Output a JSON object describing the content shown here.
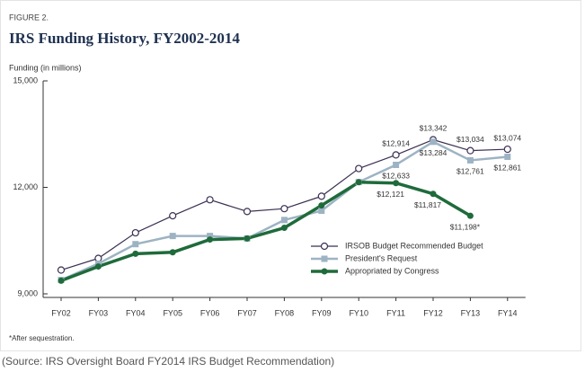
{
  "chart_data": {
    "type": "line",
    "supertitle": "FIGURE 2.",
    "title": "IRS Funding History, FY2002-2014",
    "y_label": "Funding (in millions)",
    "categories": [
      "FY02",
      "FY03",
      "FY04",
      "FY05",
      "FY06",
      "FY07",
      "FY08",
      "FY09",
      "FY10",
      "FY11",
      "FY12",
      "FY13",
      "FY14"
    ],
    "series": [
      {
        "name": "IRSOB Budget Recommended Budget",
        "color": "#3b3052",
        "marker": "circle",
        "values": [
          9670,
          10000,
          10720,
          11200,
          11650,
          11320,
          11400,
          11750,
          12530,
          12914,
          13342,
          13034,
          13074
        ],
        "value_labels": [
          null,
          null,
          null,
          null,
          null,
          null,
          null,
          null,
          null,
          "$12,914",
          "$13,342",
          "$13,034",
          "$13,074"
        ]
      },
      {
        "name": "President's Request",
        "color": "#9db3c3",
        "marker": "square",
        "values": [
          9390,
          9850,
          10400,
          10630,
          10630,
          10560,
          11080,
          11340,
          12150,
          12633,
          13284,
          12761,
          12861
        ],
        "value_labels": [
          null,
          null,
          null,
          null,
          null,
          null,
          null,
          null,
          null,
          "$12,633",
          "$13,284",
          "$12,761",
          "$12,861"
        ]
      },
      {
        "name": "Appropriated by Congress",
        "color": "#1f6b3b",
        "marker": "dot",
        "values": [
          9370,
          9770,
          10130,
          10170,
          10530,
          10560,
          10860,
          11490,
          12144,
          12121,
          11817,
          11198,
          null
        ],
        "value_labels": [
          null,
          null,
          null,
          null,
          null,
          null,
          null,
          null,
          null,
          "$12,121",
          "$11,817",
          "$11,198*",
          null
        ]
      }
    ],
    "ylim": [
      9000,
      15000
    ],
    "yticks": [
      {
        "value": 9000,
        "label": "9,000"
      },
      {
        "value": 12000,
        "label": "12,000"
      },
      {
        "value": 15000,
        "label": "15,000"
      }
    ],
    "grid": false,
    "footnote": "*After sequestration.",
    "source": "(Source: IRS Oversight Board FY2014 IRS Budget Recommendation)"
  }
}
